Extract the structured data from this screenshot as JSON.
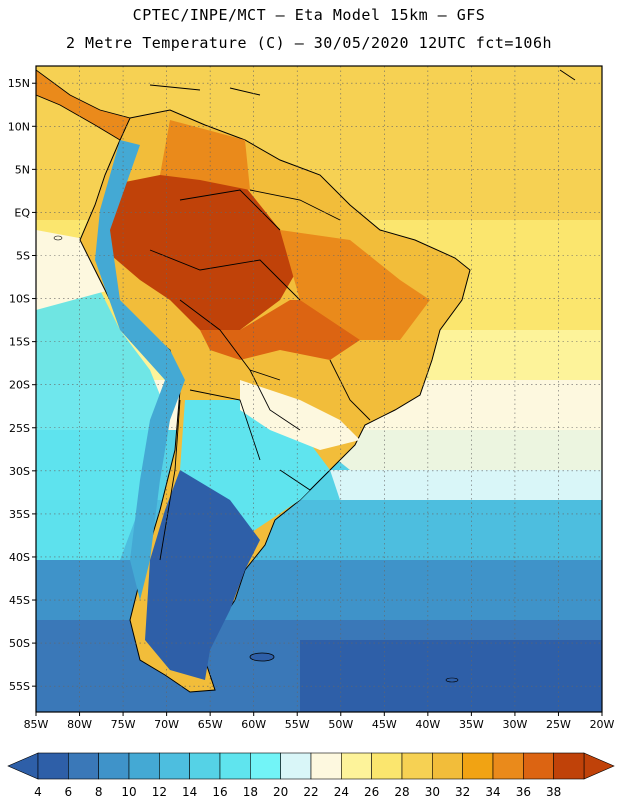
{
  "header": {
    "title_line1": "CPTEC/INPE/MCT –  Eta Model 15km – GFS",
    "title_line2": "2 Metre Temperature (C) – 30/05/2020 12UTC fct=106h"
  },
  "map": {
    "region": "South America",
    "lat_labels": [
      "15N",
      "10N",
      "5N",
      "EQ",
      "5S",
      "10S",
      "15S",
      "20S",
      "25S",
      "30S",
      "35S",
      "40S",
      "45S",
      "50S",
      "55S"
    ],
    "lat_values": [
      15,
      10,
      5,
      0,
      -5,
      -10,
      -15,
      -20,
      -25,
      -30,
      -35,
      -40,
      -45,
      -50,
      -55
    ],
    "lon_labels": [
      "85W",
      "80W",
      "75W",
      "70W",
      "65W",
      "60W",
      "55W",
      "50W",
      "45W",
      "40W",
      "35W",
      "30W",
      "25W",
      "20W"
    ],
    "lon_values": [
      -85,
      -80,
      -75,
      -70,
      -65,
      -60,
      -55,
      -50,
      -45,
      -40,
      -35,
      -30,
      -25,
      -20
    ],
    "lat_range": [
      -58,
      17
    ],
    "lon_range": [
      -85,
      -20
    ]
  },
  "colorbar": {
    "labels": [
      "4",
      "6",
      "8",
      "10",
      "12",
      "14",
      "16",
      "18",
      "20",
      "22",
      "24",
      "26",
      "28",
      "30",
      "32",
      "34",
      "36",
      "38"
    ],
    "colors": [
      "#2e5fa8",
      "#3a78b8",
      "#3f93c9",
      "#44a9d4",
      "#4dbedf",
      "#55d2e6",
      "#5fe4ee",
      "#72f4f7",
      "#d9f6f8",
      "#fdf8df",
      "#fdf39a",
      "#fbe66e",
      "#f6d153",
      "#f2bd3a",
      "#f1a313",
      "#ea8a1b",
      "#dc6412",
      "#c04209"
    ]
  },
  "regions": {
    "ocean_colors": [
      "#2e5fa8",
      "#3a78b8",
      "#3f93c9",
      "#44a9d4",
      "#4dbedf",
      "#55d2e6",
      "#72f4f7",
      "#fdf8df",
      "#fdf39a",
      "#fbe66e",
      "#f6d153"
    ],
    "land_colors": [
      "#2e5fa8",
      "#44a9d4",
      "#5fe4ee",
      "#fdf8df",
      "#f6d153",
      "#f2bd3a",
      "#f1a313",
      "#ea8a1b",
      "#dc6412",
      "#c04209"
    ]
  }
}
